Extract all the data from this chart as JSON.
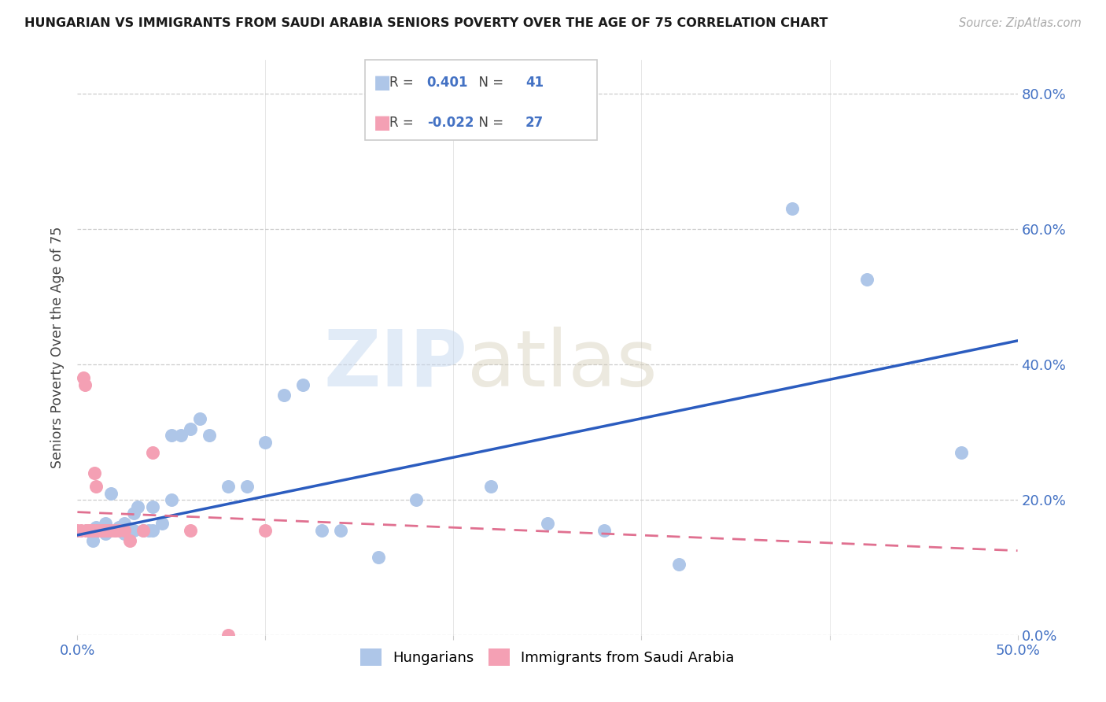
{
  "title": "HUNGARIAN VS IMMIGRANTS FROM SAUDI ARABIA SENIORS POVERTY OVER THE AGE OF 75 CORRELATION CHART",
  "source": "Source: ZipAtlas.com",
  "ylabel": "Seniors Poverty Over the Age of 75",
  "xlim": [
    0.0,
    0.5
  ],
  "ylim": [
    0.0,
    0.85
  ],
  "yticks": [
    0.0,
    0.2,
    0.4,
    0.6,
    0.8
  ],
  "blue_R": "0.401",
  "blue_N": "41",
  "pink_R": "-0.022",
  "pink_N": "27",
  "blue_color": "#aec6e8",
  "blue_line_color": "#2b5cbf",
  "pink_color": "#f4a0b4",
  "pink_line_color": "#e07090",
  "watermark_zip": "ZIP",
  "watermark_atlas": "atlas",
  "blue_scatter_x": [
    0.005,
    0.008,
    0.01,
    0.012,
    0.015,
    0.015,
    0.018,
    0.02,
    0.022,
    0.025,
    0.025,
    0.03,
    0.03,
    0.032,
    0.035,
    0.038,
    0.04,
    0.04,
    0.045,
    0.05,
    0.05,
    0.055,
    0.06,
    0.065,
    0.07,
    0.08,
    0.09,
    0.1,
    0.11,
    0.12,
    0.13,
    0.14,
    0.16,
    0.18,
    0.22,
    0.25,
    0.28,
    0.32,
    0.38,
    0.42,
    0.47
  ],
  "blue_scatter_y": [
    0.155,
    0.14,
    0.16,
    0.155,
    0.15,
    0.165,
    0.21,
    0.155,
    0.16,
    0.15,
    0.165,
    0.155,
    0.18,
    0.19,
    0.155,
    0.155,
    0.155,
    0.19,
    0.165,
    0.2,
    0.295,
    0.295,
    0.305,
    0.32,
    0.295,
    0.22,
    0.22,
    0.285,
    0.355,
    0.37,
    0.155,
    0.155,
    0.115,
    0.2,
    0.22,
    0.165,
    0.155,
    0.105,
    0.63,
    0.525,
    0.27
  ],
  "pink_scatter_x": [
    0.0,
    0.002,
    0.003,
    0.004,
    0.005,
    0.005,
    0.006,
    0.007,
    0.008,
    0.009,
    0.01,
    0.01,
    0.012,
    0.013,
    0.014,
    0.015,
    0.016,
    0.018,
    0.02,
    0.022,
    0.025,
    0.028,
    0.035,
    0.04,
    0.06,
    0.08,
    0.1
  ],
  "pink_scatter_y": [
    0.155,
    0.155,
    0.38,
    0.37,
    0.155,
    0.155,
    0.155,
    0.155,
    0.155,
    0.24,
    0.155,
    0.22,
    0.155,
    0.155,
    0.155,
    0.155,
    0.155,
    0.155,
    0.155,
    0.155,
    0.155,
    0.14,
    0.155,
    0.27,
    0.155,
    0.0,
    0.155
  ],
  "blue_trend_x": [
    0.0,
    0.5
  ],
  "blue_trend_y": [
    0.148,
    0.435
  ],
  "pink_trend_x": [
    0.0,
    0.5
  ],
  "pink_trend_y": [
    0.182,
    0.125
  ]
}
